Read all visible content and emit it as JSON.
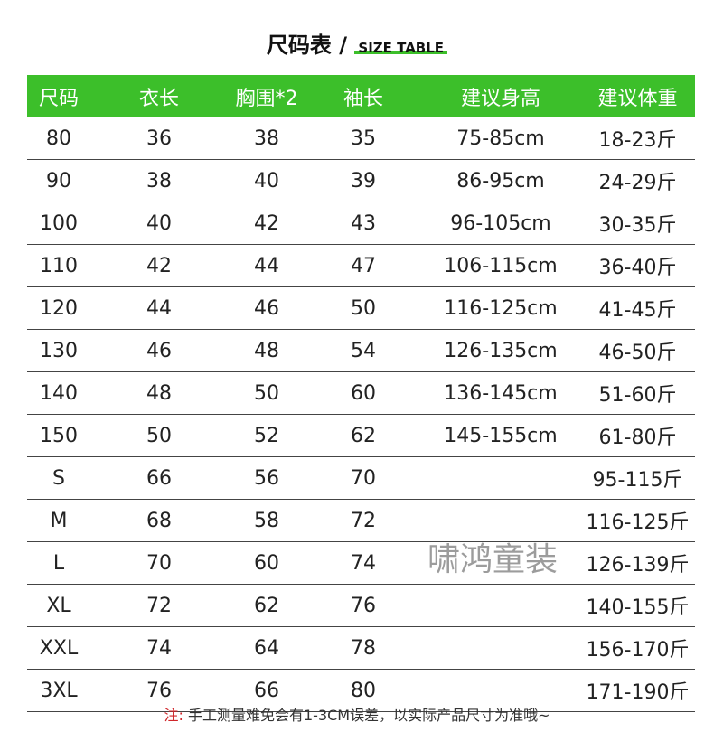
{
  "title": {
    "cn": "尺码表",
    "sep": "/",
    "en": "SIZE TABLE"
  },
  "colors": {
    "accent": "#3cbf2a",
    "note": "#d0262a"
  },
  "headers": [
    "尺码",
    "衣长",
    "胸围*2",
    "袖长",
    "建议身高",
    "建议体重"
  ],
  "rows": [
    [
      "80",
      "36",
      "38",
      "35",
      "75-85cm",
      "18-23斤"
    ],
    [
      "90",
      "38",
      "40",
      "39",
      "86-95cm",
      "24-29斤"
    ],
    [
      "100",
      "40",
      "42",
      "43",
      "96-105cm",
      "30-35斤"
    ],
    [
      "110",
      "42",
      "44",
      "47",
      "106-115cm",
      "36-40斤"
    ],
    [
      "120",
      "44",
      "46",
      "50",
      "116-125cm",
      "41-45斤"
    ],
    [
      "130",
      "46",
      "48",
      "54",
      "126-135cm",
      "46-50斤"
    ],
    [
      "140",
      "48",
      "50",
      "60",
      "136-145cm",
      "51-60斤"
    ],
    [
      "150",
      "50",
      "52",
      "62",
      "145-155cm",
      "61-80斤"
    ],
    [
      "S",
      "66",
      "56",
      "70",
      "",
      "95-115斤"
    ],
    [
      "M",
      "68",
      "58",
      "72",
      "",
      "116-125斤"
    ],
    [
      "L",
      "70",
      "60",
      "74",
      "",
      "126-139斤"
    ],
    [
      "XL",
      "72",
      "62",
      "76",
      "",
      "140-155斤"
    ],
    [
      "XXL",
      "74",
      "64",
      "78",
      "",
      "156-170斤"
    ],
    [
      "3XL",
      "76",
      "66",
      "80",
      "",
      "171-190斤"
    ]
  ],
  "watermark": "啸鸿童装",
  "note": {
    "label": "注:",
    "text": "手工测量难免会有1-3CM误差，以实际产品尺寸为准哦~"
  }
}
